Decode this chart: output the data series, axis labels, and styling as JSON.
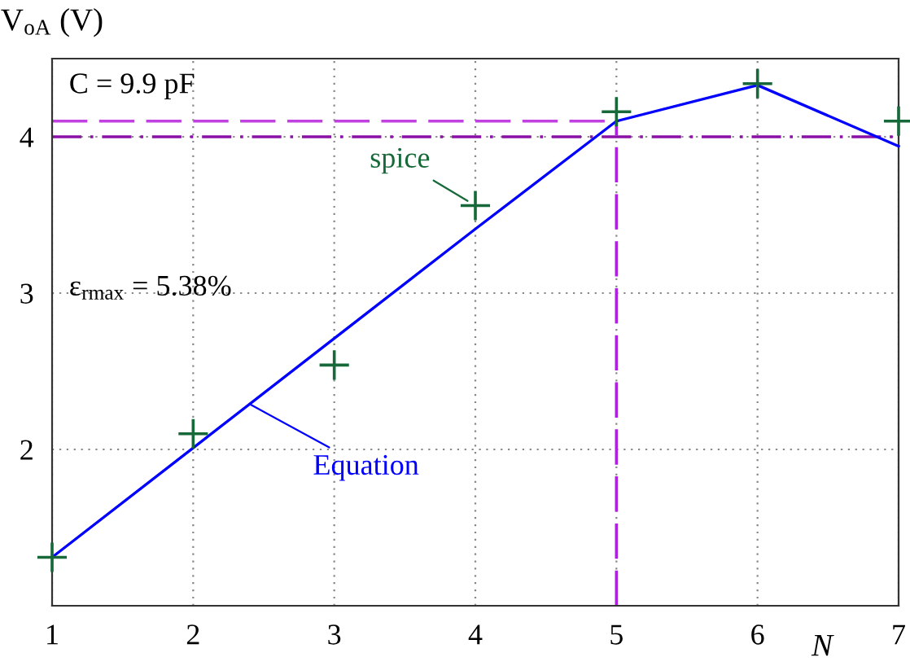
{
  "chart_data": {
    "type": "line",
    "xlabel": "N",
    "ylabel": "V$_{oA}$ (V)",
    "x": [
      1,
      2,
      3,
      4,
      5,
      6,
      7
    ],
    "series": [
      {
        "name": "Equation",
        "color": "#0000ff",
        "marker": "none",
        "values": [
          1.31,
          2.01,
          2.71,
          3.41,
          4.1,
          4.33,
          3.94
        ]
      },
      {
        "name": "spice",
        "type": "scatter",
        "color": "#17693a",
        "marker": "cross",
        "values": [
          1.31,
          2.1,
          2.54,
          3.56,
          4.16,
          4.34,
          4.1
        ]
      }
    ],
    "xlim": [
      1,
      7
    ],
    "ylim": [
      1,
      4.5
    ],
    "xticks": [
      1,
      2,
      3,
      4,
      5,
      6,
      7
    ],
    "yticks": [
      2,
      3,
      4
    ],
    "grid": true,
    "ref_lines": [
      {
        "axis": "y",
        "value": 4,
        "color": "#8a10a8",
        "line_style": "dashdot"
      },
      {
        "axis": "y",
        "value": 4.1,
        "color": "#c040e0",
        "line_style": "dashed"
      },
      {
        "axis": "x",
        "value": 5,
        "color": "#b020e0",
        "line_style": "dashed"
      }
    ],
    "annotations": [
      "C = 9.9 pF",
      "ε$_{rmax}$ = 5.38%"
    ]
  }
}
